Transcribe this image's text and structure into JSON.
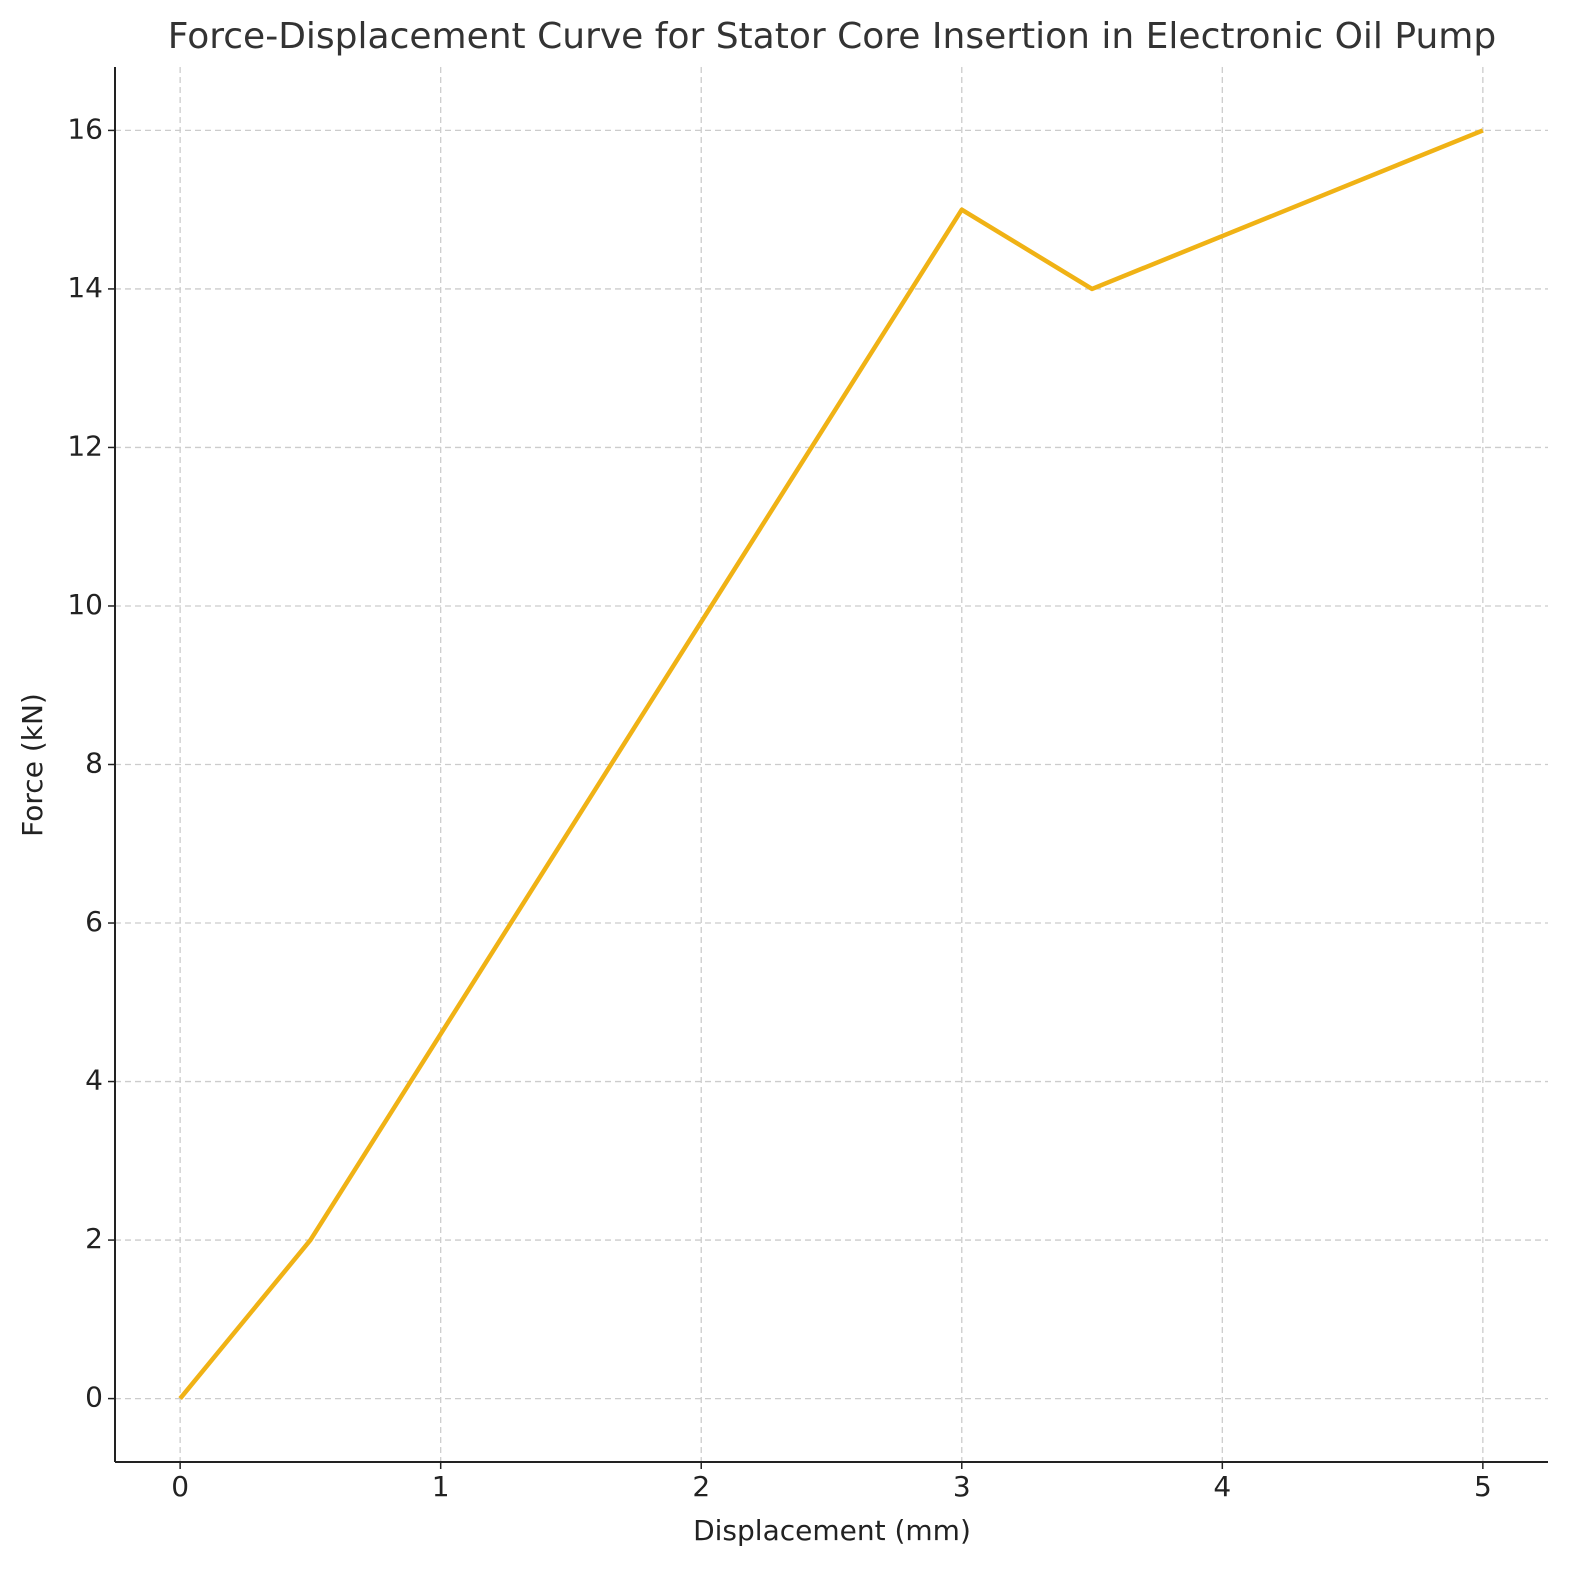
{
  "chart_data": {
    "type": "line",
    "title": "Force-Displacement Curve for Stator Core Insertion in Electronic Oil Pump",
    "x_label": "Displacement (mm)",
    "y_label": "Force (kN)",
    "x": [
      0,
      0.5,
      3,
      3.5,
      5
    ],
    "series": [
      {
        "name": "Force",
        "color": "#f0b215",
        "values": [
          0,
          2,
          15,
          14,
          16
        ]
      }
    ],
    "xlim": [
      -0.25,
      5.25
    ],
    "xticks": [
      0,
      1,
      2,
      3,
      4,
      5
    ],
    "ylim": [
      -0.8,
      16.8
    ],
    "yticks": [
      0,
      2,
      4,
      6,
      8,
      10,
      12,
      14,
      16
    ],
    "grid": true
  }
}
